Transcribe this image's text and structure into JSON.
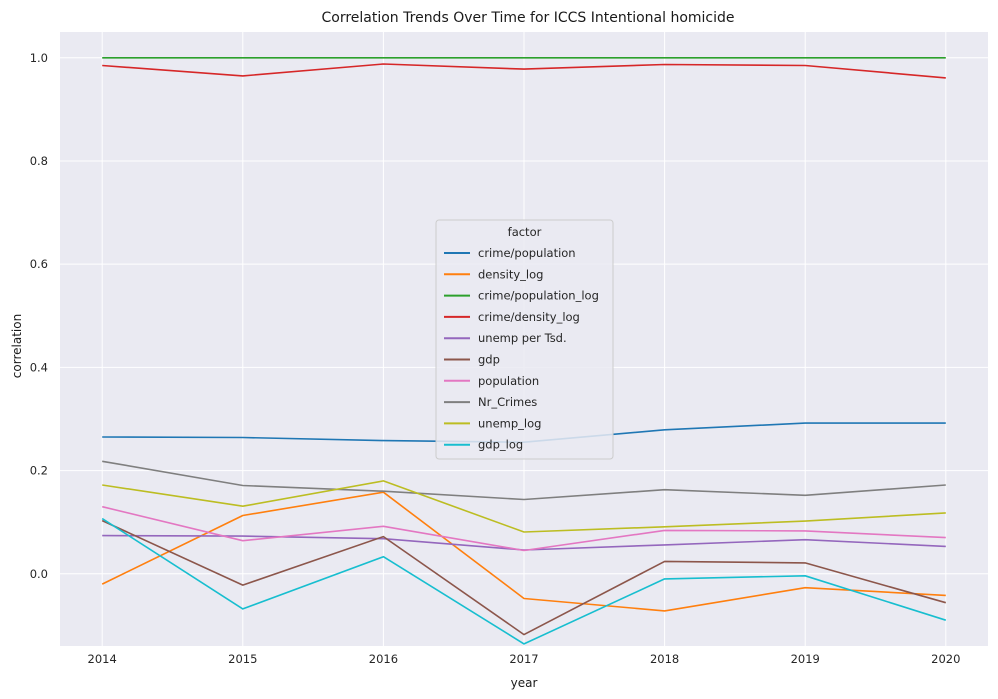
{
  "chart_data": {
    "type": "line",
    "title": "Correlation Trends Over Time for ICCS Intentional homicide",
    "xlabel": "year",
    "ylabel": "correlation",
    "x": [
      2014,
      2015,
      2016,
      2017,
      2018,
      2019,
      2020
    ],
    "x_tick_labels": [
      "2014",
      "2015",
      "2016",
      "2017",
      "2018",
      "2019",
      "2020"
    ],
    "ylim": [
      -0.14,
      1.05
    ],
    "y_ticks": [
      0.0,
      0.2,
      0.4,
      0.6,
      0.8,
      1.0
    ],
    "y_tick_labels": [
      "0.0",
      "0.2",
      "0.4",
      "0.6",
      "0.8",
      "1.0"
    ],
    "grid": true,
    "legend_title": "factor",
    "legend_placement": "center",
    "series": [
      {
        "name": "crime/population",
        "color": "#1f77b4",
        "values": [
          0.265,
          0.264,
          0.258,
          0.255,
          0.279,
          0.292,
          0.292
        ]
      },
      {
        "name": "density_log",
        "color": "#ff7f0e",
        "values": [
          -0.02,
          0.113,
          0.158,
          -0.048,
          -0.072,
          -0.027,
          -0.042
        ]
      },
      {
        "name": "crime/population_log",
        "color": "#2ca02c",
        "values": [
          1.0,
          1.0,
          1.0,
          1.0,
          1.0,
          1.0,
          1.0
        ]
      },
      {
        "name": "crime/density_log",
        "color": "#d62728",
        "values": [
          0.985,
          0.965,
          0.988,
          0.978,
          0.987,
          0.985,
          0.961
        ]
      },
      {
        "name": "unemp per Tsd.",
        "color": "#9467bd",
        "values": [
          0.074,
          0.073,
          0.068,
          0.046,
          0.056,
          0.066,
          0.053
        ]
      },
      {
        "name": "gdp",
        "color": "#8c564b",
        "values": [
          0.103,
          -0.022,
          0.072,
          -0.118,
          0.024,
          0.021,
          -0.056
        ]
      },
      {
        "name": "population",
        "color": "#e377c2",
        "values": [
          0.13,
          0.064,
          0.092,
          0.045,
          0.084,
          0.083,
          0.07
        ]
      },
      {
        "name": "Nr_Crimes",
        "color": "#7f7f7f",
        "values": [
          0.218,
          0.171,
          0.16,
          0.144,
          0.163,
          0.152,
          0.172
        ]
      },
      {
        "name": "unemp_log",
        "color": "#bcbd22",
        "values": [
          0.172,
          0.131,
          0.18,
          0.081,
          0.091,
          0.102,
          0.118
        ]
      },
      {
        "name": "gdp_log",
        "color": "#17becf",
        "values": [
          0.107,
          -0.068,
          0.033,
          -0.136,
          -0.01,
          -0.004,
          -0.09
        ]
      }
    ]
  }
}
